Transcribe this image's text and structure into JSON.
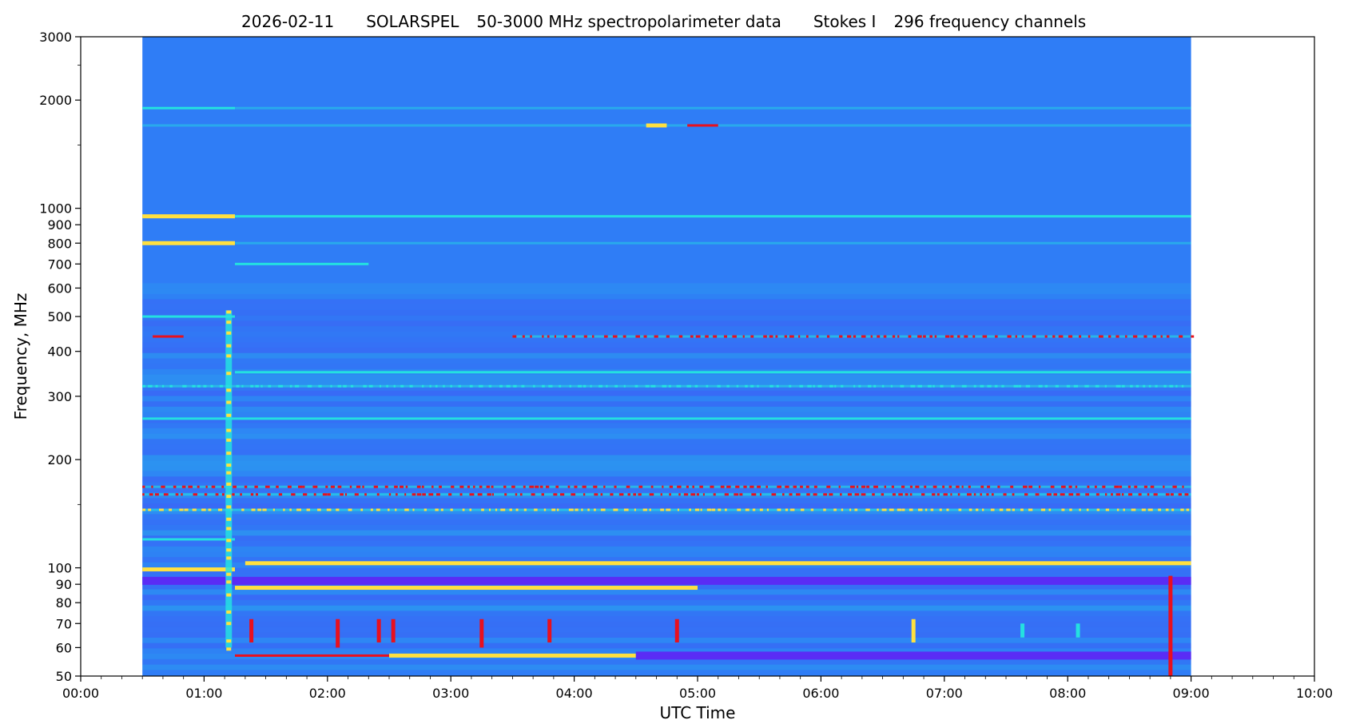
{
  "chart_data": {
    "type": "heatmap",
    "title_parts": [
      "2026-02-11",
      "SOLARSPEL",
      "50-3000 MHz spectropolarimeter data",
      "Stokes I",
      "296 frequency channels"
    ],
    "xlabel": "UTC Time",
    "ylabel": "Frequency, MHz",
    "x_scale": "time",
    "y_scale": "log",
    "xlim": [
      "00:00",
      "10:00"
    ],
    "ylim": [
      50,
      3000
    ],
    "data_xlim": [
      "00:30",
      "09:00"
    ],
    "x_ticks": [
      "00:00",
      "01:00",
      "02:00",
      "03:00",
      "04:00",
      "05:00",
      "06:00",
      "07:00",
      "08:00",
      "09:00",
      "10:00"
    ],
    "y_ticks": [
      50,
      60,
      70,
      80,
      90,
      100,
      200,
      300,
      400,
      500,
      600,
      700,
      800,
      900,
      1000,
      2000,
      3000
    ],
    "colormap": "rainbow",
    "colors": {
      "background": "#2f7df6",
      "low": "#5a2cf5",
      "mid": "#24e0e0",
      "high": "#ffe040",
      "peak": "#e8101e"
    },
    "bands": [
      {
        "freq": 1900,
        "from": "00:30",
        "to": "01:15",
        "level": "mid"
      },
      {
        "freq": 1900,
        "from": "01:15",
        "to": "09:00",
        "level": "weak"
      },
      {
        "freq": 1700,
        "from": "00:30",
        "to": "09:00",
        "level": "weak"
      },
      {
        "freq": 1700,
        "from": "04:35",
        "to": "04:45",
        "level": "high"
      },
      {
        "freq": 1700,
        "from": "04:55",
        "to": "05:10",
        "level": "peak"
      },
      {
        "freq": 950,
        "from": "00:30",
        "to": "01:15",
        "level": "high"
      },
      {
        "freq": 950,
        "from": "01:15",
        "to": "09:00",
        "level": "mid"
      },
      {
        "freq": 800,
        "from": "00:30",
        "to": "01:15",
        "level": "high"
      },
      {
        "freq": 800,
        "from": "01:15",
        "to": "09:00",
        "level": "weak"
      },
      {
        "freq": 700,
        "from": "01:15",
        "to": "02:20",
        "level": "mid"
      },
      {
        "freq": 500,
        "from": "00:30",
        "to": "01:15",
        "level": "mid"
      },
      {
        "freq": 440,
        "from": "00:35",
        "to": "00:50",
        "level": "peak"
      },
      {
        "freq": 440,
        "from": "03:30",
        "to": "09:00",
        "level": "peak-dotted"
      },
      {
        "freq": 350,
        "from": "01:15",
        "to": "09:00",
        "level": "mid"
      },
      {
        "freq": 320,
        "from": "00:30",
        "to": "09:00",
        "level": "mid-dotted"
      },
      {
        "freq": 260,
        "from": "00:30",
        "to": "09:00",
        "level": "mid"
      },
      {
        "freq": 168,
        "from": "00:30",
        "to": "09:00",
        "level": "peak-dotted"
      },
      {
        "freq": 160,
        "from": "00:30",
        "to": "09:00",
        "level": "peak-dotted"
      },
      {
        "freq": 145,
        "from": "00:30",
        "to": "09:00",
        "level": "high-dotted"
      },
      {
        "freq": 120,
        "from": "00:30",
        "to": "01:15",
        "level": "mid"
      },
      {
        "freq": 103,
        "from": "01:20",
        "to": "09:00",
        "level": "high"
      },
      {
        "freq": 99,
        "from": "00:30",
        "to": "01:15",
        "level": "high"
      },
      {
        "freq": 92,
        "from": "00:30",
        "to": "09:00",
        "level": "low"
      },
      {
        "freq": 88,
        "from": "01:15",
        "to": "05:00",
        "level": "high"
      },
      {
        "freq": 57,
        "from": "01:15",
        "to": "02:30",
        "level": "peak"
      },
      {
        "freq": 57,
        "from": "02:30",
        "to": "04:30",
        "level": "high"
      },
      {
        "freq": 57,
        "from": "04:30",
        "to": "09:00",
        "level": "low"
      }
    ],
    "bursts": [
      {
        "time": "01:12",
        "fmin": 60,
        "fmax": 520,
        "level": "high"
      },
      {
        "time": "01:23",
        "fmin": 62,
        "fmax": 72,
        "level": "peak"
      },
      {
        "time": "02:05",
        "fmin": 60,
        "fmax": 72,
        "level": "peak"
      },
      {
        "time": "02:25",
        "fmin": 62,
        "fmax": 72,
        "level": "peak"
      },
      {
        "time": "02:32",
        "fmin": 62,
        "fmax": 72,
        "level": "peak"
      },
      {
        "time": "03:15",
        "fmin": 60,
        "fmax": 72,
        "level": "peak"
      },
      {
        "time": "03:48",
        "fmin": 62,
        "fmax": 72,
        "level": "peak"
      },
      {
        "time": "04:50",
        "fmin": 62,
        "fmax": 72,
        "level": "peak"
      },
      {
        "time": "06:45",
        "fmin": 62,
        "fmax": 72,
        "level": "high"
      },
      {
        "time": "07:38",
        "fmin": 64,
        "fmax": 70,
        "level": "mid"
      },
      {
        "time": "08:05",
        "fmin": 64,
        "fmax": 70,
        "level": "mid"
      },
      {
        "time": "08:50",
        "fmin": 50,
        "fmax": 95,
        "level": "peak"
      }
    ]
  }
}
